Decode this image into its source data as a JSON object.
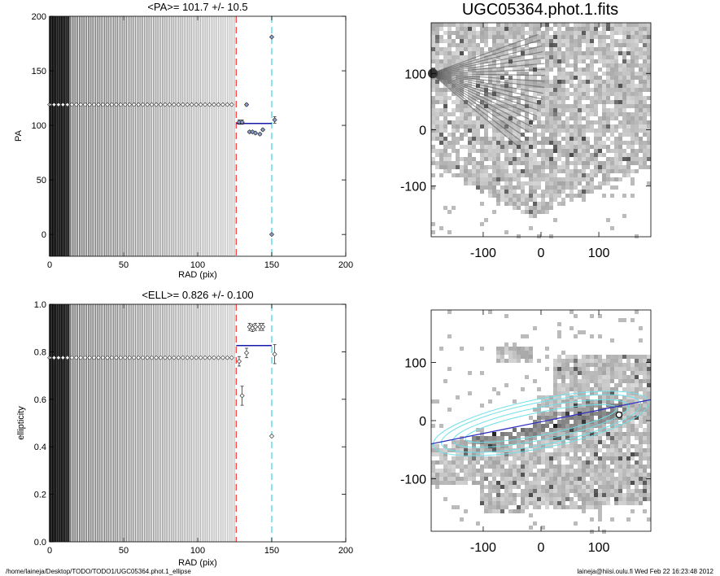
{
  "chart_data": [
    {
      "type": "scatter",
      "title": "<PA>= 101.7 +/-  10.5",
      "xlabel": "RAD (pix)",
      "ylabel": "PA",
      "xlim": [
        0,
        200
      ],
      "ylim": [
        -20,
        200
      ],
      "xticks": [
        "0",
        "50",
        "100",
        "150",
        "200"
      ],
      "yticks": [
        "0",
        "50",
        "100",
        "150",
        "200"
      ],
      "grid": false,
      "mean_line": {
        "y": 101.7,
        "x": [
          126,
          150
        ],
        "color": "#1a1aaa"
      },
      "vlines": [
        {
          "x": 126,
          "color": "#ff3333"
        },
        {
          "x": 150,
          "color": "#40d0e0"
        }
      ],
      "series": [
        {
          "x_start": 0,
          "x_end": 125,
          "x_step": 1,
          "y_const": 119
        },
        {
          "x": [
            128,
            130,
            133,
            135,
            137,
            139,
            142,
            144
          ],
          "y": [
            103,
            103,
            119,
            94,
            94,
            93,
            92,
            96
          ],
          "err": [
            2,
            2,
            1,
            1,
            1,
            1,
            1,
            1
          ]
        },
        {
          "x": [
            150,
            150,
            152
          ],
          "y": [
            181,
            0,
            105
          ],
          "err": [
            0,
            0,
            3
          ]
        }
      ]
    },
    {
      "type": "image",
      "title": "UGC05364.phot.1.fits",
      "xlim": [
        -190,
        190
      ],
      "ylim": [
        -190,
        190
      ],
      "xticks": [
        "-100",
        "0",
        "100"
      ],
      "yticks": [
        "-100",
        "0",
        "100"
      ]
    },
    {
      "type": "scatter",
      "title": "<ELL>= 0.826 +/-  0.100",
      "xlabel": "RAD (pix)",
      "ylabel": "ellipticity",
      "xlim": [
        0,
        200
      ],
      "ylim": [
        0,
        1
      ],
      "xticks": [
        "0",
        "50",
        "100",
        "150",
        "200"
      ],
      "yticks": [
        "0.0",
        "0.2",
        "0.4",
        "0.6",
        "0.8",
        "1.0"
      ],
      "grid": false,
      "mean_line": {
        "y": 0.826,
        "x": [
          126,
          150
        ],
        "color": "#1a1aaa"
      },
      "vlines": [
        {
          "x": 126,
          "color": "#ff3333"
        },
        {
          "x": 150,
          "color": "#40d0e0"
        }
      ],
      "series": [
        {
          "x_start": 0,
          "x_end": 125,
          "x_step": 1,
          "y_const": 0.775
        },
        {
          "x": [
            128,
            130,
            133,
            135,
            137,
            139,
            142,
            144,
            152,
            150
          ],
          "y": [
            0.76,
            0.615,
            0.795,
            0.905,
            0.9,
            0.905,
            0.905,
            0.905,
            0.79,
            0.445
          ],
          "err": [
            0.02,
            0.04,
            0.02,
            0.015,
            0.015,
            0.015,
            0.015,
            0.015,
            0.04,
            0
          ]
        }
      ]
    },
    {
      "type": "image",
      "xlim": [
        -190,
        190
      ],
      "ylim": [
        -190,
        190
      ],
      "xticks": [
        "-100",
        "0",
        "100"
      ],
      "yticks": [
        "-100",
        "0",
        "100"
      ]
    }
  ],
  "footer": {
    "path": "/home/laineja/Desktop/TODO/TODO1/UGC05364.phot.1_ellipse",
    "user_time": "laineja@hiisi.oulu.fi  Wed Feb 22 16:23:48 2012"
  }
}
